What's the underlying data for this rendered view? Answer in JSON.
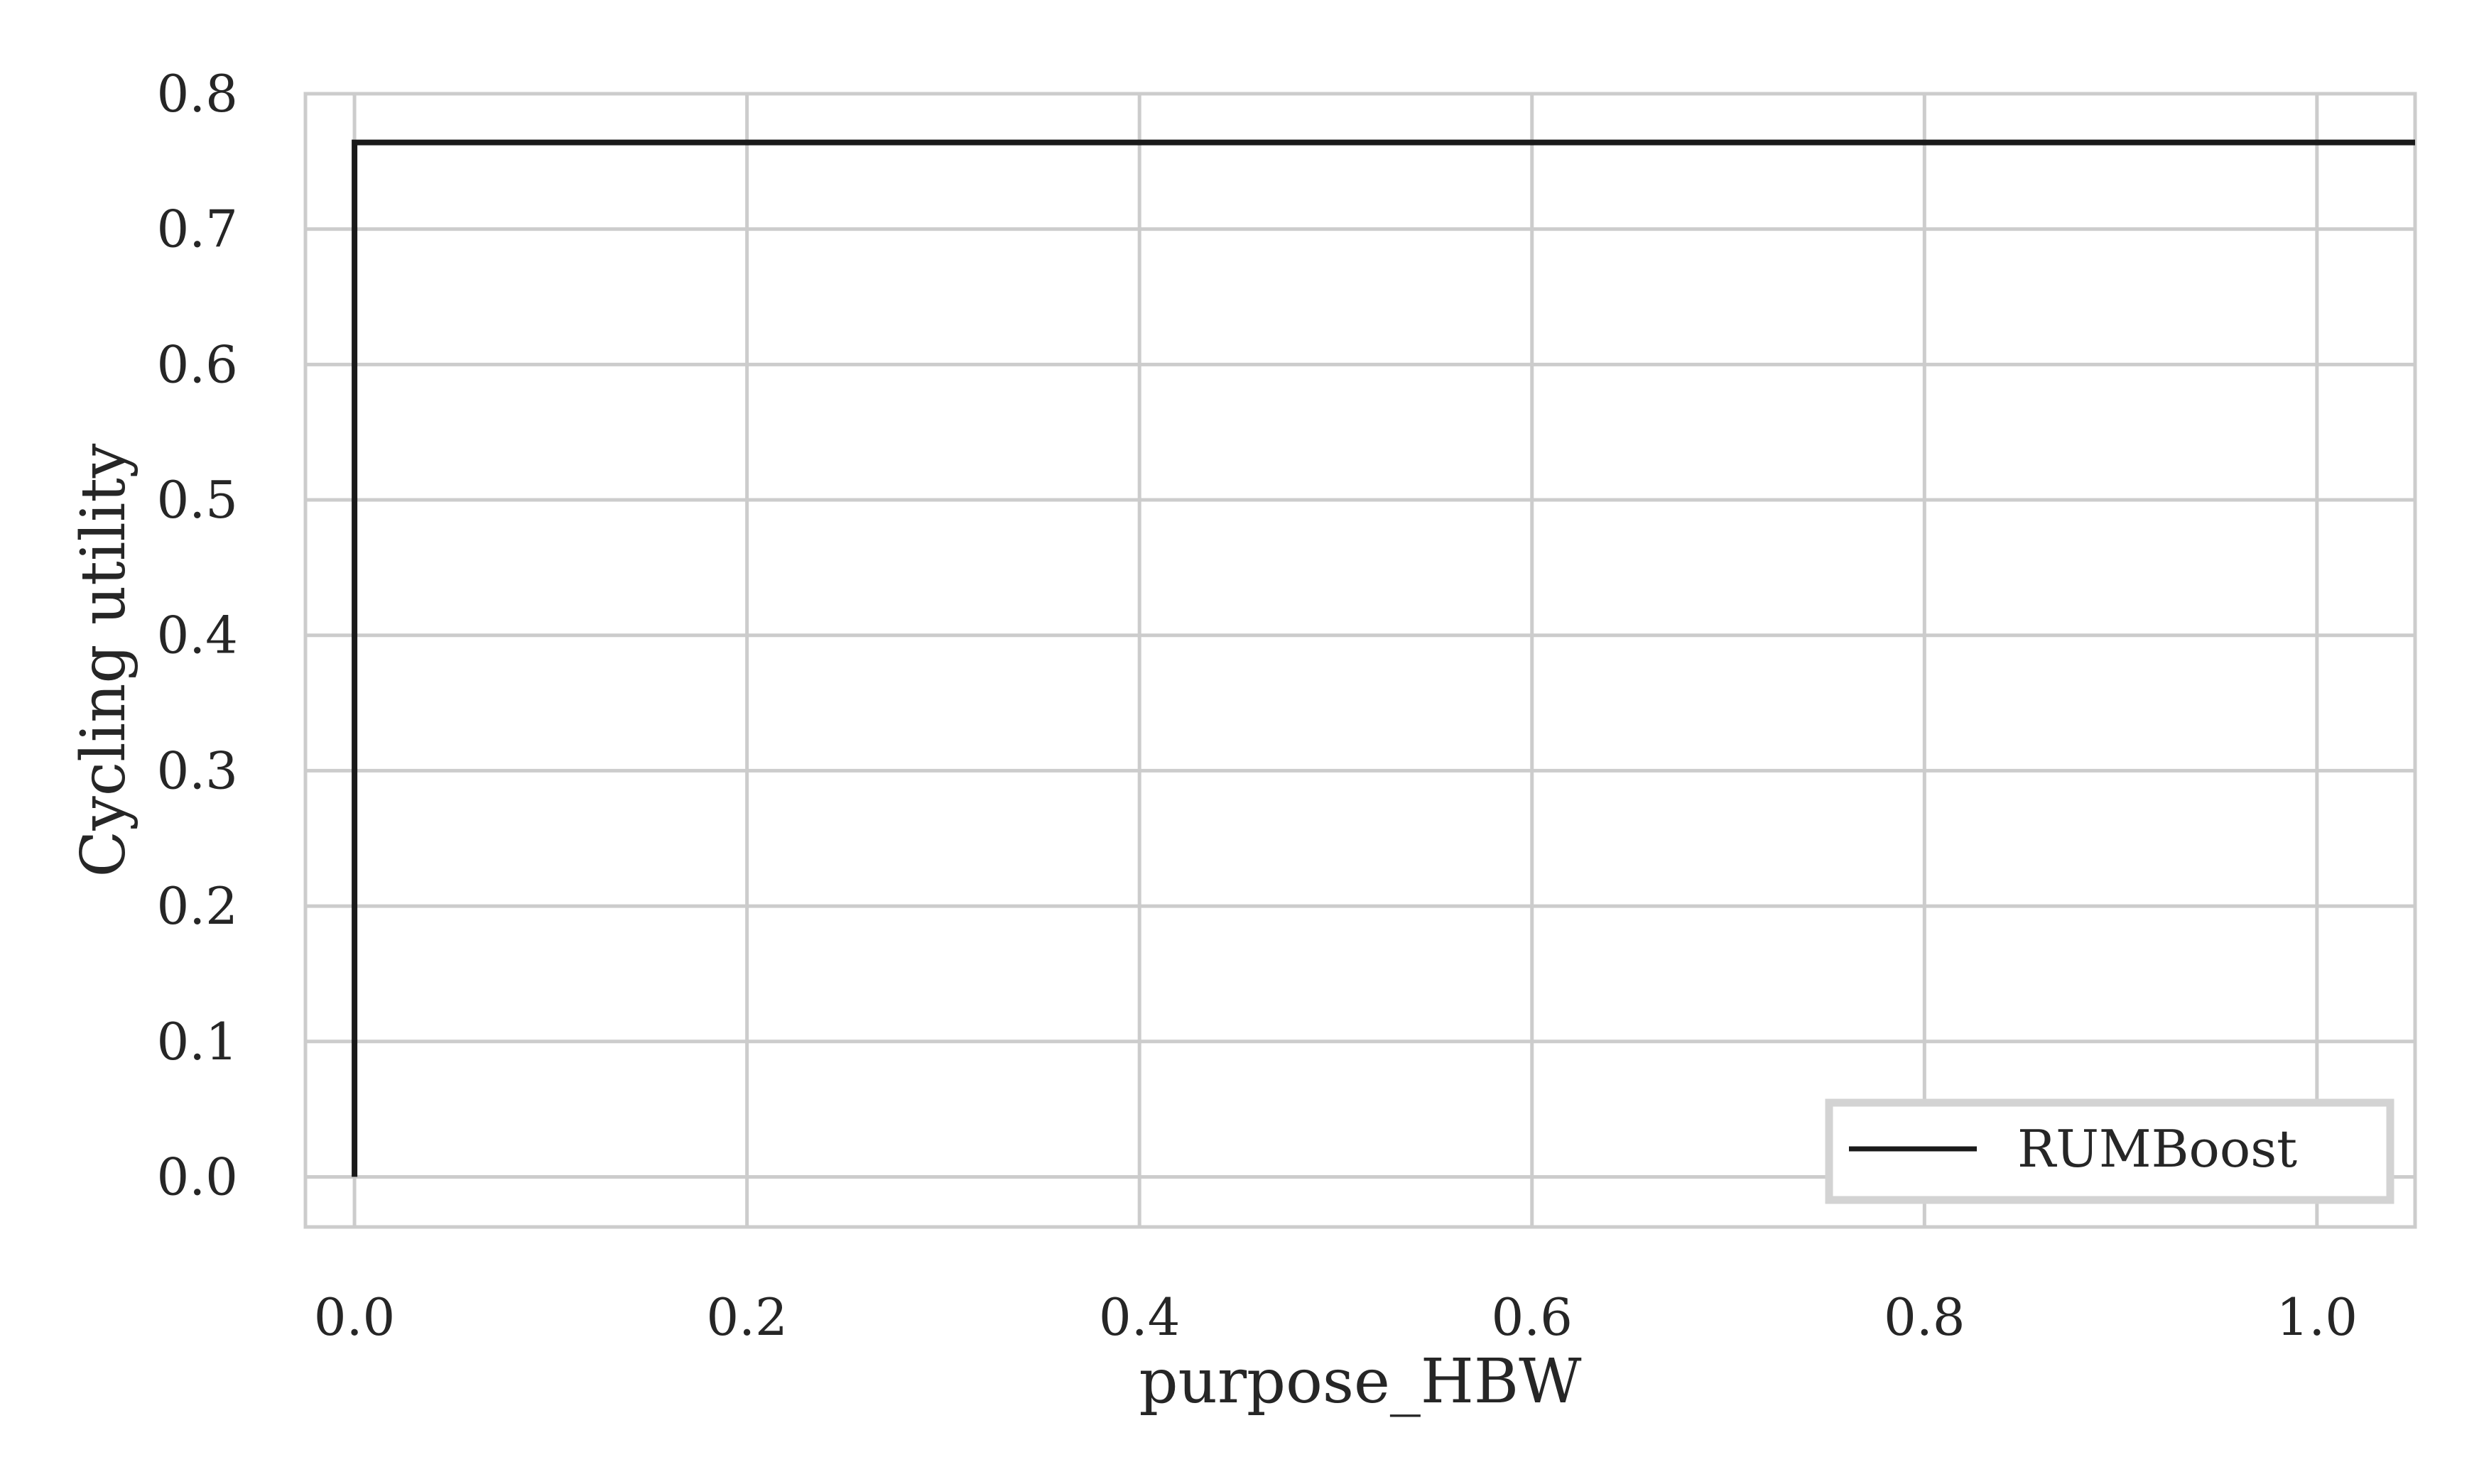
{
  "chart_data": {
    "type": "line",
    "title": "",
    "xlabel": "purpose_HBW",
    "ylabel": "Cycling utility",
    "xlim": [
      -0.025,
      1.05
    ],
    "ylim": [
      -0.037,
      0.8
    ],
    "x_ticks": [
      "0.0",
      "0.2",
      "0.4",
      "0.6",
      "0.8",
      "1.0"
    ],
    "x_tick_values": [
      0.0,
      0.2,
      0.4,
      0.6,
      0.8,
      1.0
    ],
    "y_ticks": [
      "0.0",
      "0.1",
      "0.2",
      "0.3",
      "0.4",
      "0.5",
      "0.6",
      "0.7",
      "0.8"
    ],
    "y_tick_values": [
      0.0,
      0.1,
      0.2,
      0.3,
      0.4,
      0.5,
      0.6,
      0.7,
      0.8
    ],
    "grid": true,
    "legend_position": "lower-right",
    "series": [
      {
        "name": "RUMBoost",
        "color": "#1a1a1a",
        "x": [
          0.0,
          0.0,
          1.05
        ],
        "y": [
          0.0,
          0.764,
          0.764
        ]
      }
    ]
  },
  "colors": {
    "grid": "#cccccc",
    "frame": "#cccccc",
    "legend_border": "#d3d3d3",
    "text": "#262626"
  }
}
